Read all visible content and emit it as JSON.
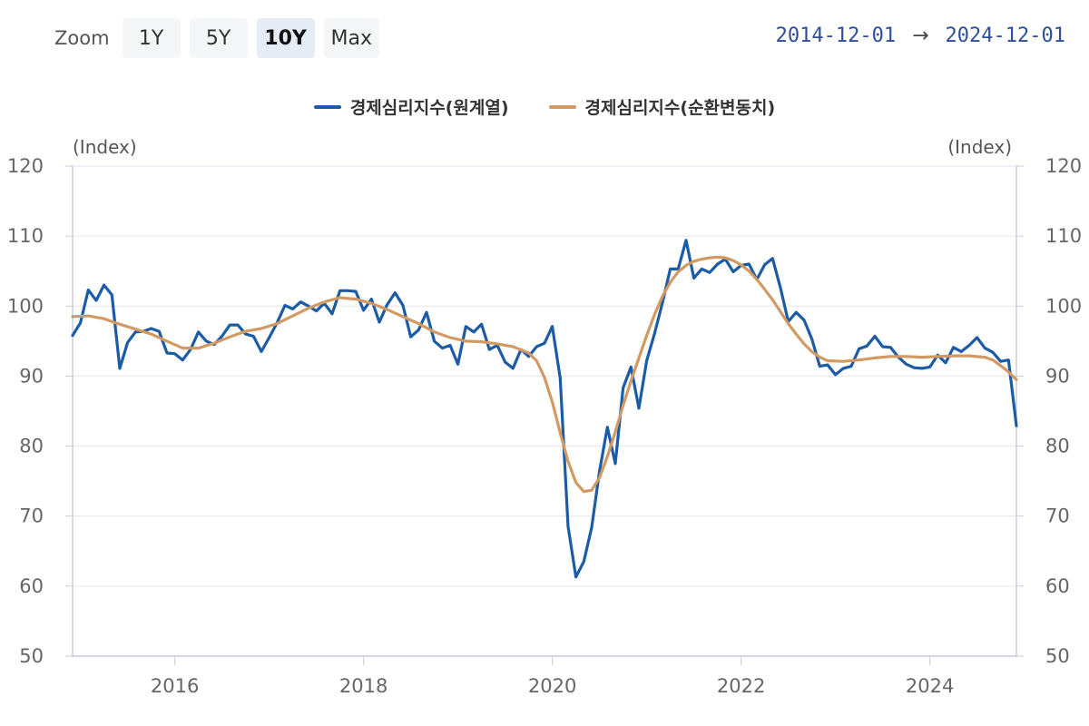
{
  "zoom": {
    "label": "Zoom",
    "buttons": [
      {
        "label": "1Y",
        "active": false
      },
      {
        "label": "5Y",
        "active": false
      },
      {
        "label": "10Y",
        "active": true
      },
      {
        "label": "Max",
        "active": false
      }
    ]
  },
  "range": {
    "start": "2014-12-01",
    "arrow": "→",
    "end": "2024-12-01"
  },
  "chart_data": {
    "type": "line",
    "title": "",
    "xlabel": "",
    "ylabel": "(Index)",
    "ylabel_right": "(Index)",
    "ylim": [
      50,
      120
    ],
    "yticks": [
      50,
      60,
      70,
      80,
      90,
      100,
      110,
      120
    ],
    "xlim": [
      2014.917,
      2024.917
    ],
    "xticks": [
      2016,
      2018,
      2020,
      2022,
      2024
    ],
    "grid": true,
    "legend_position": "top-center",
    "series": [
      {
        "name": "경제심리지수(원계열)",
        "color": "#1c5ca6",
        "points": [
          [
            2014.917,
            95.8
          ],
          [
            2015.0,
            97.6
          ],
          [
            2015.083,
            102.3
          ],
          [
            2015.167,
            100.8
          ],
          [
            2015.25,
            103.0
          ],
          [
            2015.333,
            101.6
          ],
          [
            2015.417,
            91.1
          ],
          [
            2015.5,
            94.8
          ],
          [
            2015.583,
            96.3
          ],
          [
            2015.667,
            96.4
          ],
          [
            2015.75,
            96.8
          ],
          [
            2015.833,
            96.4
          ],
          [
            2015.917,
            93.3
          ],
          [
            2016.0,
            93.2
          ],
          [
            2016.083,
            92.3
          ],
          [
            2016.167,
            93.8
          ],
          [
            2016.25,
            96.3
          ],
          [
            2016.333,
            95.0
          ],
          [
            2016.417,
            94.5
          ],
          [
            2016.5,
            95.7
          ],
          [
            2016.583,
            97.3
          ],
          [
            2016.667,
            97.3
          ],
          [
            2016.75,
            96.0
          ],
          [
            2016.833,
            95.7
          ],
          [
            2016.917,
            93.5
          ],
          [
            2017.0,
            95.5
          ],
          [
            2017.083,
            97.6
          ],
          [
            2017.167,
            100.1
          ],
          [
            2017.25,
            99.6
          ],
          [
            2017.333,
            100.6
          ],
          [
            2017.417,
            100.0
          ],
          [
            2017.5,
            99.3
          ],
          [
            2017.583,
            100.4
          ],
          [
            2017.667,
            98.9
          ],
          [
            2017.75,
            102.2
          ],
          [
            2017.833,
            102.2
          ],
          [
            2017.917,
            102.1
          ],
          [
            2018.0,
            99.4
          ],
          [
            2018.083,
            101.0
          ],
          [
            2018.167,
            97.7
          ],
          [
            2018.25,
            100.2
          ],
          [
            2018.333,
            101.9
          ],
          [
            2018.417,
            100.1
          ],
          [
            2018.5,
            95.6
          ],
          [
            2018.583,
            96.6
          ],
          [
            2018.667,
            99.1
          ],
          [
            2018.75,
            95.0
          ],
          [
            2018.833,
            94.0
          ],
          [
            2018.917,
            94.4
          ],
          [
            2019.0,
            91.7
          ],
          [
            2019.083,
            97.1
          ],
          [
            2019.167,
            96.3
          ],
          [
            2019.25,
            97.4
          ],
          [
            2019.333,
            93.8
          ],
          [
            2019.417,
            94.4
          ],
          [
            2019.5,
            92.0
          ],
          [
            2019.583,
            91.1
          ],
          [
            2019.667,
            93.8
          ],
          [
            2019.75,
            92.8
          ],
          [
            2019.833,
            94.2
          ],
          [
            2019.917,
            94.7
          ],
          [
            2020.0,
            97.1
          ],
          [
            2020.083,
            89.7
          ],
          [
            2020.167,
            68.5
          ],
          [
            2020.25,
            61.3
          ],
          [
            2020.333,
            63.5
          ],
          [
            2020.417,
            68.4
          ],
          [
            2020.5,
            76.4
          ],
          [
            2020.583,
            82.7
          ],
          [
            2020.667,
            77.5
          ],
          [
            2020.75,
            88.3
          ],
          [
            2020.833,
            91.3
          ],
          [
            2020.917,
            85.4
          ],
          [
            2021.0,
            92.2
          ],
          [
            2021.083,
            96.1
          ],
          [
            2021.167,
            100.5
          ],
          [
            2021.25,
            105.3
          ],
          [
            2021.333,
            105.3
          ],
          [
            2021.417,
            109.4
          ],
          [
            2021.5,
            104.0
          ],
          [
            2021.583,
            105.3
          ],
          [
            2021.667,
            104.8
          ],
          [
            2021.75,
            106.0
          ],
          [
            2021.833,
            106.7
          ],
          [
            2021.917,
            104.9
          ],
          [
            2022.0,
            105.8
          ],
          [
            2022.083,
            106.0
          ],
          [
            2022.167,
            103.8
          ],
          [
            2022.25,
            105.9
          ],
          [
            2022.333,
            106.8
          ],
          [
            2022.417,
            102.6
          ],
          [
            2022.5,
            97.8
          ],
          [
            2022.583,
            99.1
          ],
          [
            2022.667,
            98.0
          ],
          [
            2022.75,
            95.3
          ],
          [
            2022.833,
            91.4
          ],
          [
            2022.917,
            91.6
          ],
          [
            2023.0,
            90.2
          ],
          [
            2023.083,
            91.1
          ],
          [
            2023.167,
            91.4
          ],
          [
            2023.25,
            93.9
          ],
          [
            2023.333,
            94.3
          ],
          [
            2023.417,
            95.7
          ],
          [
            2023.5,
            94.2
          ],
          [
            2023.583,
            94.1
          ],
          [
            2023.667,
            92.7
          ],
          [
            2023.75,
            91.7
          ],
          [
            2023.833,
            91.2
          ],
          [
            2023.917,
            91.1
          ],
          [
            2024.0,
            91.3
          ],
          [
            2024.083,
            93.0
          ],
          [
            2024.167,
            91.9
          ],
          [
            2024.25,
            94.1
          ],
          [
            2024.333,
            93.5
          ],
          [
            2024.417,
            94.4
          ],
          [
            2024.5,
            95.5
          ],
          [
            2024.583,
            94.0
          ],
          [
            2024.667,
            93.4
          ],
          [
            2024.75,
            92.1
          ],
          [
            2024.833,
            92.3
          ],
          [
            2024.917,
            82.9
          ]
        ]
      },
      {
        "name": "경제심리지수(순환변동치)",
        "color": "#d29a62",
        "points": [
          [
            2014.917,
            98.5
          ],
          [
            2015.083,
            98.6
          ],
          [
            2015.25,
            98.2
          ],
          [
            2015.417,
            97.4
          ],
          [
            2015.583,
            96.7
          ],
          [
            2015.75,
            96.0
          ],
          [
            2015.917,
            95.0
          ],
          [
            2016.083,
            94.0
          ],
          [
            2016.25,
            94.0
          ],
          [
            2016.417,
            94.7
          ],
          [
            2016.583,
            95.6
          ],
          [
            2016.75,
            96.4
          ],
          [
            2016.917,
            96.8
          ],
          [
            2017.083,
            97.5
          ],
          [
            2017.25,
            98.6
          ],
          [
            2017.417,
            99.7
          ],
          [
            2017.583,
            100.6
          ],
          [
            2017.75,
            101.2
          ],
          [
            2017.917,
            101.0
          ],
          [
            2018.083,
            100.4
          ],
          [
            2018.25,
            99.5
          ],
          [
            2018.417,
            98.5
          ],
          [
            2018.583,
            97.5
          ],
          [
            2018.75,
            96.3
          ],
          [
            2018.917,
            95.5
          ],
          [
            2019.083,
            95.0
          ],
          [
            2019.25,
            94.9
          ],
          [
            2019.417,
            94.6
          ],
          [
            2019.583,
            94.2
          ],
          [
            2019.75,
            93.3
          ],
          [
            2019.833,
            92.2
          ],
          [
            2019.917,
            89.8
          ],
          [
            2020.0,
            86.3
          ],
          [
            2020.083,
            81.9
          ],
          [
            2020.167,
            77.8
          ],
          [
            2020.25,
            74.8
          ],
          [
            2020.333,
            73.5
          ],
          [
            2020.417,
            73.7
          ],
          [
            2020.5,
            75.5
          ],
          [
            2020.583,
            78.5
          ],
          [
            2020.667,
            82.0
          ],
          [
            2020.75,
            85.8
          ],
          [
            2020.833,
            89.3
          ],
          [
            2020.917,
            92.6
          ],
          [
            2021.0,
            95.8
          ],
          [
            2021.083,
            98.8
          ],
          [
            2021.167,
            101.4
          ],
          [
            2021.25,
            103.4
          ],
          [
            2021.333,
            104.9
          ],
          [
            2021.417,
            105.8
          ],
          [
            2021.5,
            106.4
          ],
          [
            2021.583,
            106.7
          ],
          [
            2021.667,
            106.9
          ],
          [
            2021.75,
            107.0
          ],
          [
            2021.833,
            106.9
          ],
          [
            2021.917,
            106.5
          ],
          [
            2022.0,
            105.9
          ],
          [
            2022.083,
            105.0
          ],
          [
            2022.167,
            103.8
          ],
          [
            2022.25,
            102.4
          ],
          [
            2022.333,
            100.9
          ],
          [
            2022.417,
            99.2
          ],
          [
            2022.5,
            97.5
          ],
          [
            2022.583,
            96.0
          ],
          [
            2022.667,
            94.6
          ],
          [
            2022.75,
            93.5
          ],
          [
            2022.833,
            92.7
          ],
          [
            2022.917,
            92.2
          ],
          [
            2023.083,
            92.1
          ],
          [
            2023.25,
            92.3
          ],
          [
            2023.417,
            92.6
          ],
          [
            2023.583,
            92.8
          ],
          [
            2023.75,
            92.8
          ],
          [
            2023.917,
            92.7
          ],
          [
            2024.083,
            92.8
          ],
          [
            2024.25,
            92.9
          ],
          [
            2024.417,
            92.9
          ],
          [
            2024.583,
            92.7
          ],
          [
            2024.667,
            92.3
          ],
          [
            2024.75,
            91.5
          ],
          [
            2024.833,
            90.6
          ],
          [
            2024.917,
            89.5
          ]
        ]
      }
    ]
  }
}
